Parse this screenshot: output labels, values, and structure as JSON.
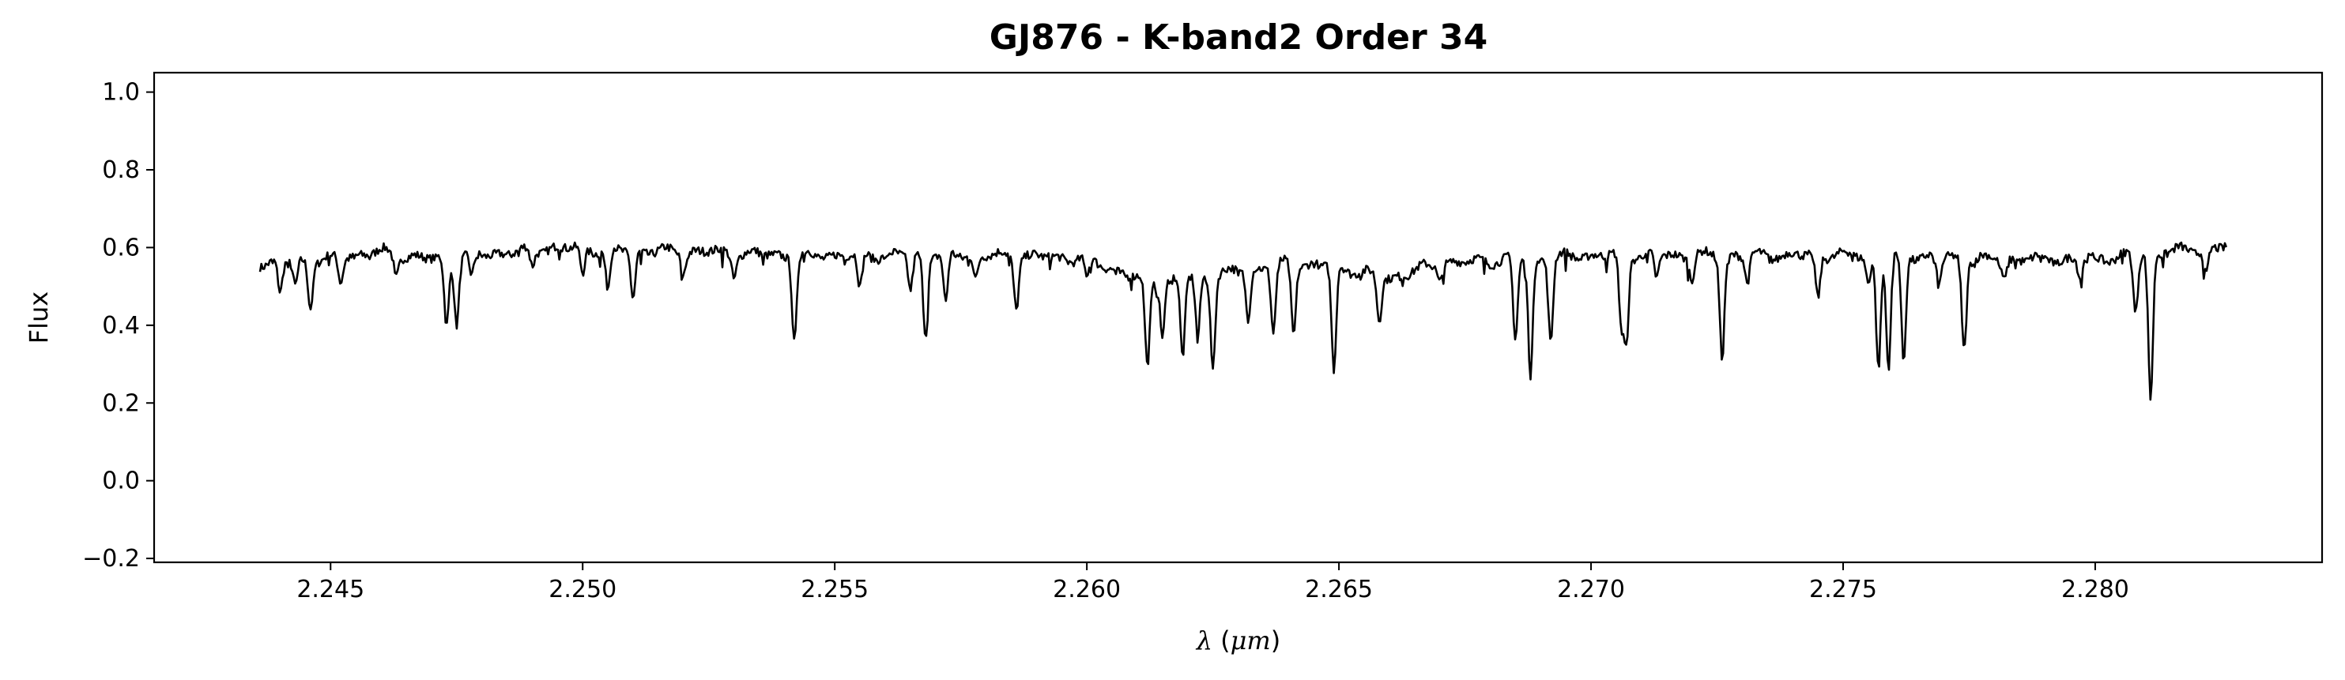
{
  "chart_data": {
    "type": "line",
    "title": "GJ876 - K-band2 Order 34",
    "xlabel_symbol": "λ",
    "xlabel_unit": "μm",
    "ylabel": "Flux",
    "xlim": [
      2.2415,
      2.2845
    ],
    "ylim": [
      -0.21,
      1.05
    ],
    "xticks": [
      2.245,
      2.25,
      2.255,
      2.26,
      2.265,
      2.27,
      2.275,
      2.28
    ],
    "xtick_labels": [
      "2.245",
      "2.250",
      "2.255",
      "2.260",
      "2.265",
      "2.270",
      "2.275",
      "2.280"
    ],
    "yticks": [
      -0.2,
      0.0,
      0.2,
      0.4,
      0.6,
      0.8,
      1.0
    ],
    "ytick_labels": [
      "−0.2",
      "0.0",
      "0.2",
      "0.4",
      "0.6",
      "0.8",
      "1.0"
    ],
    "grid": false,
    "line_color": "#000000",
    "series": [
      {
        "x_start": 2.2436,
        "x_end": 2.2826,
        "continuum": [
          [
            2.2436,
            0.56
          ],
          [
            2.245,
            0.57
          ],
          [
            2.246,
            0.59
          ],
          [
            2.247,
            0.57
          ],
          [
            2.248,
            0.58
          ],
          [
            2.2495,
            0.6
          ],
          [
            2.251,
            0.59
          ],
          [
            2.2525,
            0.59
          ],
          [
            2.254,
            0.58
          ],
          [
            2.2555,
            0.58
          ],
          [
            2.257,
            0.58
          ],
          [
            2.2585,
            0.58
          ],
          [
            2.26,
            0.57
          ],
          [
            2.2612,
            0.51
          ],
          [
            2.2625,
            0.53
          ],
          [
            2.264,
            0.56
          ],
          [
            2.265,
            0.55
          ],
          [
            2.266,
            0.52
          ],
          [
            2.267,
            0.56
          ],
          [
            2.2685,
            0.57
          ],
          [
            2.27,
            0.58
          ],
          [
            2.272,
            0.58
          ],
          [
            2.274,
            0.58
          ],
          [
            2.276,
            0.58
          ],
          [
            2.278,
            0.57
          ],
          [
            2.28,
            0.57
          ],
          [
            2.2815,
            0.59
          ],
          [
            2.2826,
            0.6
          ]
        ],
        "absorption_lines": [
          [
            2.244,
            0.48
          ],
          [
            2.2443,
            0.5
          ],
          [
            2.2446,
            0.45
          ],
          [
            2.2452,
            0.51
          ],
          [
            2.2463,
            0.53
          ],
          [
            2.2473,
            0.4
          ],
          [
            2.2475,
            0.41
          ],
          [
            2.2478,
            0.52
          ],
          [
            2.249,
            0.55
          ],
          [
            2.25,
            0.53
          ],
          [
            2.2505,
            0.49
          ],
          [
            2.251,
            0.47
          ],
          [
            2.252,
            0.54
          ],
          [
            2.253,
            0.53
          ],
          [
            2.2542,
            0.36
          ],
          [
            2.2555,
            0.49
          ],
          [
            2.2565,
            0.49
          ],
          [
            2.2568,
            0.38
          ],
          [
            2.2572,
            0.45
          ],
          [
            2.2578,
            0.52
          ],
          [
            2.2586,
            0.45
          ],
          [
            2.26,
            0.52
          ],
          [
            2.2612,
            0.29
          ],
          [
            2.2615,
            0.38
          ],
          [
            2.2619,
            0.32
          ],
          [
            2.2622,
            0.37
          ],
          [
            2.2625,
            0.3
          ],
          [
            2.2632,
            0.42
          ],
          [
            2.2637,
            0.38
          ],
          [
            2.2641,
            0.38
          ],
          [
            2.2649,
            0.28
          ],
          [
            2.2658,
            0.41
          ],
          [
            2.267,
            0.52
          ],
          [
            2.2685,
            0.36
          ],
          [
            2.2688,
            0.27
          ],
          [
            2.2692,
            0.36
          ],
          [
            2.2706,
            0.4
          ],
          [
            2.2707,
            0.36
          ],
          [
            2.2713,
            0.52
          ],
          [
            2.272,
            0.52
          ],
          [
            2.2726,
            0.32
          ],
          [
            2.2731,
            0.51
          ],
          [
            2.2745,
            0.47
          ],
          [
            2.2755,
            0.51
          ],
          [
            2.2757,
            0.29
          ],
          [
            2.2759,
            0.29
          ],
          [
            2.2762,
            0.3
          ],
          [
            2.2769,
            0.5
          ],
          [
            2.2774,
            0.34
          ],
          [
            2.2782,
            0.52
          ],
          [
            2.2797,
            0.52
          ],
          [
            2.2808,
            0.43
          ],
          [
            2.2811,
            0.21
          ],
          [
            2.2822,
            0.53
          ]
        ]
      }
    ]
  }
}
